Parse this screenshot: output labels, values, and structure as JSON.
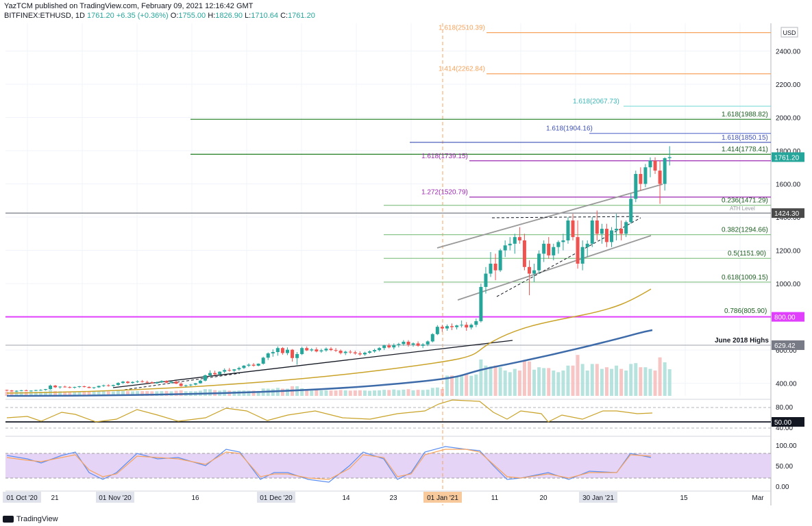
{
  "header": {
    "line1": "YazTCM published on TradingView.com, February 09, 2021 12:16:42 GMT",
    "symbol": "BITFINEX:ETHUSD, 1D",
    "last": "1761.20",
    "change": "+6.35 (+0.36%)",
    "o_label": "O:",
    "o": "1755.00",
    "h_label": "H:",
    "h": "1826.90",
    "l_label": "L:",
    "l": "1710.64",
    "c_label": "C:",
    "c": "1761.20"
  },
  "footer": {
    "brand": "TradingView"
  },
  "colors": {
    "up": "#26a69a",
    "down": "#ef5350",
    "fib_orange": "#f7a35c",
    "fib_green": "#6aa84f",
    "fib_purple": "#9c27b0",
    "fib_blue": "#3f51b5",
    "ma_yellow": "#c9a227",
    "ma_blue": "#3d6aa8",
    "rsi_fill": "#e6d4f7"
  },
  "chart_data": {
    "type": "candlestick",
    "symbol": "BITFINEX:ETHUSD",
    "interval": "1D",
    "currency": "USD",
    "y_ticks": [
      "2400.00",
      "2200.00",
      "2000.00",
      "1800.00",
      "1600.00",
      "1400.00",
      "1200.00",
      "1000.00",
      "800.00",
      "600.00",
      "400.00"
    ],
    "x_ticks": [
      "01 Oct '20",
      "21",
      "01 Nov '20",
      "16",
      "01 Dec '20",
      "14",
      "23",
      "01 Jan '21",
      "11",
      "20",
      "30 Jan '21",
      "15",
      "Mar"
    ],
    "price_labels": [
      {
        "text": "1761.20",
        "kind": "last"
      },
      {
        "text": "1424.30",
        "kind": "ath"
      },
      {
        "text": "800.00",
        "kind": "level"
      },
      {
        "text": "629.42",
        "kind": "june"
      }
    ],
    "annotations": [
      {
        "text": "1.618(2510.39)",
        "price": 2510.39,
        "color": "orange"
      },
      {
        "text": "1.414(2262.84)",
        "price": 2262.84,
        "color": "orange"
      },
      {
        "text": "1.618(2067.73)",
        "price": 2067.73,
        "color": "cyan"
      },
      {
        "text": "1.618(1988.82)",
        "price": 1988.82,
        "color": "green"
      },
      {
        "text": "1.618(1904.16)",
        "price": 1904.16,
        "color": "blue"
      },
      {
        "text": "1.618(1850.15)",
        "price": 1850.15,
        "color": "blue"
      },
      {
        "text": "1.414(1778.41)",
        "price": 1778.41,
        "color": "green"
      },
      {
        "text": "1.618(1739.15)",
        "price": 1739.15,
        "color": "purple"
      },
      {
        "text": "1.272(1520.79)",
        "price": 1520.79,
        "color": "purple"
      },
      {
        "text": "0.236(1471.29)",
        "price": 1471.29,
        "color": "green"
      },
      {
        "text": "ATH Level",
        "price": 1424.3,
        "color": "gray"
      },
      {
        "text": "0.382(1294.66)",
        "price": 1294.66,
        "color": "green"
      },
      {
        "text": "0.5(1151.90)",
        "price": 1151.9,
        "color": "green"
      },
      {
        "text": "0.618(1009.15)",
        "price": 1009.15,
        "color": "green"
      },
      {
        "text": "0.786(805.90)",
        "price": 805.9,
        "color": "green"
      },
      {
        "text": "June 2018 Highs",
        "price": 629.42,
        "color": "black"
      }
    ],
    "rsi": {
      "ticks": [
        "80.00",
        "50.00",
        "40.00"
      ],
      "level_label": "50.00"
    },
    "stoch_rsi": {
      "ticks": [
        "100.00",
        "50.00",
        "0.00"
      ]
    },
    "candles": [
      [
        360,
        362,
        352,
        357
      ],
      [
        357,
        360,
        350,
        352
      ],
      [
        352,
        358,
        348,
        355
      ],
      [
        355,
        360,
        352,
        358
      ],
      [
        358,
        362,
        353,
        354
      ],
      [
        354,
        358,
        350,
        356
      ],
      [
        356,
        361,
        353,
        359
      ],
      [
        359,
        364,
        355,
        360
      ],
      [
        360,
        366,
        356,
        365
      ],
      [
        365,
        392,
        362,
        386
      ],
      [
        386,
        390,
        372,
        376
      ],
      [
        376,
        382,
        368,
        380
      ],
      [
        380,
        386,
        374,
        377
      ],
      [
        377,
        382,
        370,
        374
      ],
      [
        374,
        380,
        368,
        378
      ],
      [
        378,
        384,
        372,
        382
      ],
      [
        382,
        386,
        374,
        378
      ],
      [
        378,
        382,
        370,
        372
      ],
      [
        372,
        378,
        366,
        376
      ],
      [
        376,
        386,
        372,
        384
      ],
      [
        384,
        392,
        378,
        388
      ],
      [
        388,
        394,
        380,
        384
      ],
      [
        384,
        392,
        380,
        390
      ],
      [
        390,
        406,
        386,
        402
      ],
      [
        402,
        414,
        396,
        410
      ],
      [
        410,
        414,
        398,
        402
      ],
      [
        402,
        412,
        398,
        408
      ],
      [
        408,
        418,
        402,
        412
      ],
      [
        412,
        420,
        404,
        408
      ],
      [
        408,
        416,
        400,
        406
      ],
      [
        406,
        412,
        398,
        400
      ],
      [
        400,
        410,
        396,
        406
      ],
      [
        406,
        418,
        402,
        414
      ],
      [
        414,
        418,
        400,
        404
      ],
      [
        404,
        412,
        398,
        410
      ],
      [
        410,
        416,
        395,
        398
      ],
      [
        398,
        406,
        380,
        384
      ],
      [
        384,
        392,
        378,
        388
      ],
      [
        388,
        396,
        382,
        392
      ],
      [
        392,
        402,
        388,
        400
      ],
      [
        400,
        420,
        398,
        416
      ],
      [
        416,
        452,
        412,
        448
      ],
      [
        448,
        478,
        440,
        462
      ],
      [
        462,
        476,
        448,
        454
      ],
      [
        454,
        472,
        450,
        470
      ],
      [
        470,
        490,
        460,
        480
      ],
      [
        480,
        492,
        470,
        476
      ],
      [
        476,
        486,
        466,
        484
      ],
      [
        484,
        500,
        476,
        492
      ],
      [
        492,
        510,
        486,
        506
      ],
      [
        506,
        520,
        498,
        512
      ],
      [
        512,
        522,
        500,
        506
      ],
      [
        506,
        520,
        502,
        518
      ],
      [
        518,
        560,
        512,
        554
      ],
      [
        554,
        586,
        540,
        580
      ],
      [
        580,
        604,
        560,
        588
      ],
      [
        588,
        622,
        566,
        612
      ],
      [
        612,
        618,
        572,
        582
      ],
      [
        582,
        616,
        570,
        602
      ],
      [
        602,
        606,
        530,
        552
      ],
      [
        552,
        588,
        512,
        576
      ],
      [
        576,
        620,
        570,
        612
      ],
      [
        612,
        622,
        594,
        598
      ],
      [
        598,
        612,
        590,
        604
      ],
      [
        604,
        616,
        586,
        592
      ],
      [
        592,
        608,
        584,
        598
      ],
      [
        598,
        616,
        590,
        608
      ],
      [
        608,
        618,
        594,
        600
      ],
      [
        600,
        612,
        588,
        596
      ],
      [
        596,
        604,
        574,
        582
      ],
      [
        582,
        596,
        570,
        590
      ],
      [
        590,
        600,
        578,
        586
      ],
      [
        586,
        596,
        572,
        580
      ],
      [
        580,
        592,
        566,
        574
      ],
      [
        574,
        590,
        566,
        584
      ],
      [
        584,
        598,
        578,
        592
      ],
      [
        592,
        608,
        584,
        600
      ],
      [
        600,
        618,
        592,
        612
      ],
      [
        612,
        632,
        600,
        628
      ],
      [
        628,
        640,
        610,
        616
      ],
      [
        616,
        640,
        604,
        630
      ],
      [
        630,
        644,
        616,
        636
      ],
      [
        636,
        660,
        626,
        650
      ],
      [
        650,
        660,
        620,
        632
      ],
      [
        632,
        646,
        620,
        640
      ],
      [
        640,
        652,
        620,
        626
      ],
      [
        626,
        642,
        612,
        634
      ],
      [
        634,
        658,
        624,
        652
      ],
      [
        652,
        702,
        646,
        696
      ],
      [
        696,
        750,
        690,
        740
      ],
      [
        740,
        752,
        710,
        730
      ],
      [
        730,
        754,
        716,
        744
      ],
      [
        744,
        760,
        720,
        738
      ],
      [
        738,
        752,
        724,
        748
      ],
      [
        748,
        778,
        736,
        752
      ],
      [
        752,
        768,
        716,
        736
      ],
      [
        736,
        760,
        724,
        752
      ],
      [
        752,
        790,
        738,
        774
      ],
      [
        774,
        1000,
        766,
        980
      ],
      [
        980,
        1100,
        940,
        1060
      ],
      [
        1060,
        1190,
        1040,
        1120
      ],
      [
        1120,
        1180,
        1020,
        1080
      ],
      [
        1080,
        1210,
        1070,
        1200
      ],
      [
        1200,
        1260,
        1160,
        1230
      ],
      [
        1230,
        1280,
        1200,
        1240
      ],
      [
        1240,
        1300,
        1180,
        1280
      ],
      [
        1280,
        1340,
        1240,
        1260
      ],
      [
        1260,
        1300,
        1080,
        1100
      ],
      [
        1100,
        1140,
        930,
        1060
      ],
      [
        1060,
        1120,
        1010,
        1080
      ],
      [
        1080,
        1200,
        1060,
        1180
      ],
      [
        1180,
        1260,
        1130,
        1240
      ],
      [
        1240,
        1280,
        1150,
        1170
      ],
      [
        1170,
        1240,
        1140,
        1220
      ],
      [
        1220,
        1260,
        1180,
        1250
      ],
      [
        1250,
        1300,
        1200,
        1260
      ],
      [
        1260,
        1400,
        1240,
        1380
      ],
      [
        1380,
        1420,
        1260,
        1280
      ],
      [
        1280,
        1380,
        1090,
        1120
      ],
      [
        1120,
        1260,
        1080,
        1220
      ],
      [
        1220,
        1260,
        1160,
        1240
      ],
      [
        1240,
        1400,
        1220,
        1380
      ],
      [
        1380,
        1440,
        1260,
        1300
      ],
      [
        1300,
        1360,
        1240,
        1330
      ],
      [
        1330,
        1360,
        1220,
        1250
      ],
      [
        1250,
        1340,
        1220,
        1320
      ],
      [
        1320,
        1420,
        1260,
        1330
      ],
      [
        1330,
        1380,
        1260,
        1300
      ],
      [
        1300,
        1380,
        1280,
        1370
      ],
      [
        1370,
        1540,
        1360,
        1510
      ],
      [
        1510,
        1680,
        1490,
        1660
      ],
      [
        1660,
        1700,
        1560,
        1600
      ],
      [
        1600,
        1720,
        1580,
        1700
      ],
      [
        1700,
        1760,
        1640,
        1740
      ],
      [
        1740,
        1760,
        1660,
        1680
      ],
      [
        1680,
        1740,
        1480,
        1600
      ],
      [
        1600,
        1760,
        1560,
        1755
      ],
      [
        1755,
        1827,
        1711,
        1761
      ]
    ]
  }
}
